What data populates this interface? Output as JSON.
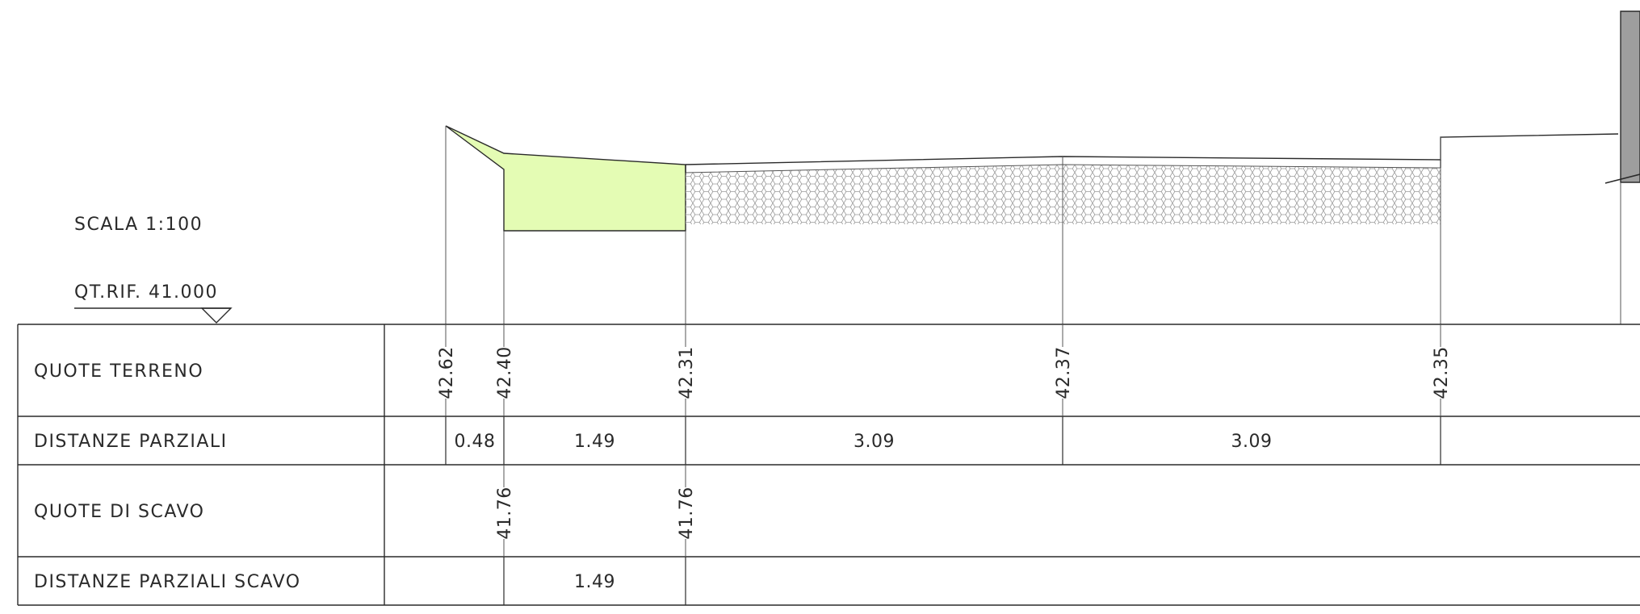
{
  "header": {
    "scale": "SCALA 1:100",
    "reference": "QT.RIF. 41.000"
  },
  "rows": {
    "ground_levels": "QUOTE TERRENO",
    "partial_distances": "DISTANZE PARZIALI",
    "excavation_levels": "QUOTE DI SCAVO",
    "excavation_partial_distances": "DISTANZE PARZIALI SCAVO"
  },
  "ground_levels": [
    "42.62",
    "42.40",
    "42.31",
    "42.37",
    "42.35"
  ],
  "partial_distances": [
    "0.48",
    "1.49",
    "3.09",
    "3.09"
  ],
  "excavation_levels": [
    "41.76",
    "41.76"
  ],
  "excavation_partial_distances": [
    "1.49"
  ],
  "colors": {
    "line": "#2a2a2a",
    "excavation_fill": "#e4fcb4",
    "hatch": "#9a9a9a",
    "structure_fill": "#9e9e9e"
  }
}
